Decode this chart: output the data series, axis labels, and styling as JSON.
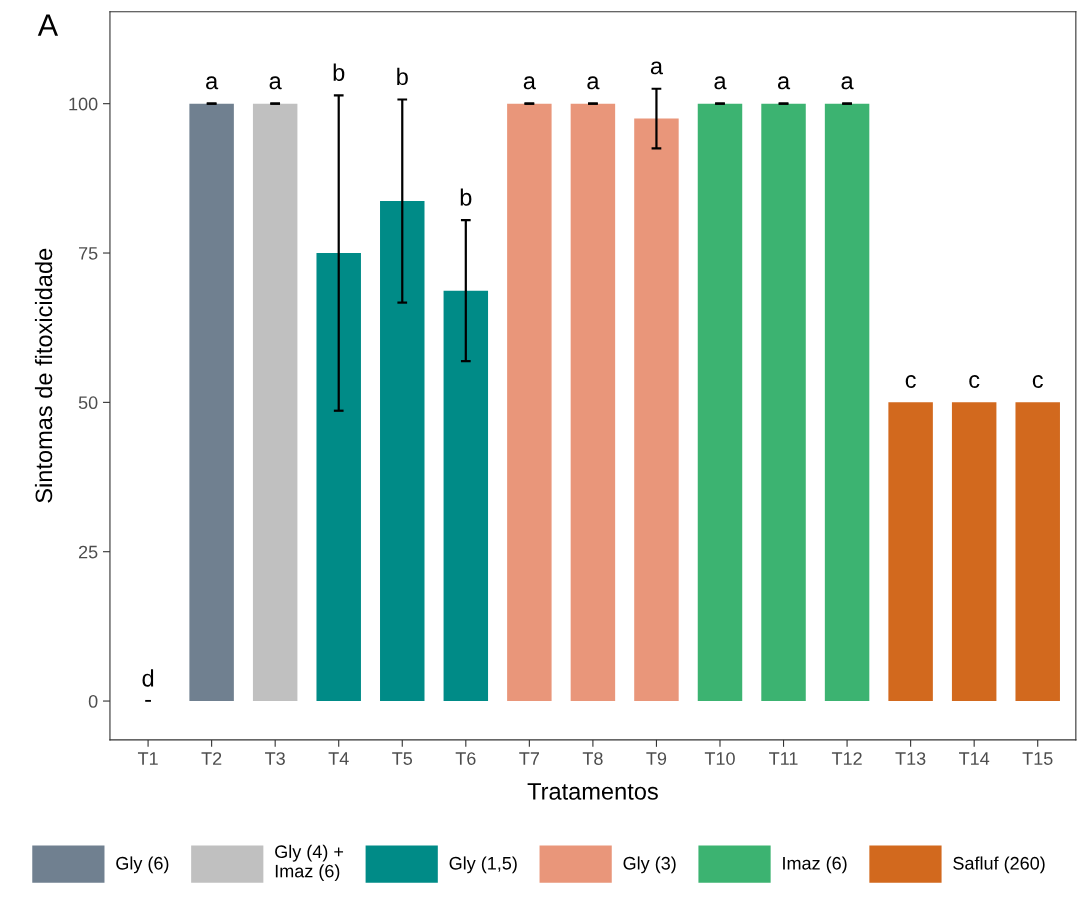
{
  "chart_data": {
    "type": "bar",
    "xlabel": "Tratamentos",
    "ylabel": "Sintomas de fitoxicidade",
    "categories": [
      "T1",
      "T2",
      "T3",
      "T4",
      "T5",
      "T6",
      "T7",
      "T8",
      "T9",
      "T10",
      "T11",
      "T12",
      "T13",
      "T14",
      "T15"
    ],
    "series": [
      {
        "color": "#ffffff",
        "values": [
          0,
          null,
          null,
          null,
          null,
          null,
          null,
          null,
          null,
          null,
          null,
          null,
          null,
          null,
          null
        ],
        "errors": [
          null,
          null,
          null,
          null,
          null,
          null,
          null,
          null,
          null,
          null,
          null,
          null,
          null,
          null,
          null
        ]
      },
      {
        "name": "Gly (6)",
        "color": "#708090",
        "values": [
          null,
          100,
          null,
          null,
          null,
          null,
          null,
          null,
          null,
          null,
          null,
          null,
          null,
          null,
          null
        ],
        "errors": [
          null,
          0,
          null,
          null,
          null,
          null,
          null,
          null,
          null,
          null,
          null,
          null,
          null,
          null,
          null
        ]
      },
      {
        "name": "Gly (4) +\nImaz (6)",
        "color": "#c0c0c0",
        "values": [
          null,
          null,
          100,
          null,
          null,
          null,
          null,
          null,
          null,
          null,
          null,
          null,
          null,
          null,
          null
        ],
        "errors": [
          null,
          null,
          0,
          null,
          null,
          null,
          null,
          null,
          null,
          null,
          null,
          null,
          null,
          null,
          null
        ]
      },
      {
        "name": "Gly (1,5)",
        "color": "#008b87",
        "values": [
          null,
          null,
          null,
          75,
          83.7,
          68.7,
          null,
          null,
          null,
          null,
          null,
          null,
          null,
          null,
          null
        ],
        "errors": [
          null,
          null,
          null,
          26.4,
          17,
          11.8,
          null,
          null,
          null,
          null,
          null,
          null,
          null,
          null,
          null
        ]
      },
      {
        "name": "Gly (3)",
        "color": "#e9967a",
        "values": [
          null,
          null,
          null,
          null,
          null,
          null,
          100,
          100,
          97.5,
          null,
          null,
          null,
          null,
          null,
          null
        ],
        "errors": [
          null,
          null,
          null,
          null,
          null,
          null,
          0,
          0,
          5,
          null,
          null,
          null,
          null,
          null,
          null
        ]
      },
      {
        "name": "Imaz (6)",
        "color": "#3cb371",
        "values": [
          null,
          null,
          null,
          null,
          null,
          null,
          null,
          null,
          null,
          100,
          100,
          100,
          null,
          null,
          null
        ],
        "errors": [
          null,
          null,
          null,
          null,
          null,
          null,
          null,
          null,
          null,
          0,
          0,
          0,
          null,
          null,
          null
        ]
      },
      {
        "name": "Safluf (260)",
        "color": "#d2691e",
        "values": [
          null,
          null,
          null,
          null,
          null,
          null,
          null,
          null,
          null,
          null,
          null,
          null,
          50,
          50,
          50
        ],
        "errors": [
          null,
          null,
          null,
          null,
          null,
          null,
          null,
          null,
          null,
          null,
          null,
          null,
          null,
          null,
          null
        ]
      }
    ],
    "ylim": [
      -6.5,
      115.4
    ],
    "yticks": [
      0,
      25,
      50,
      75,
      100
    ],
    "grid": false,
    "legend": "bottom",
    "annotations": [
      "A",
      {
        "text": "d",
        "x": "T1",
        "y": 0
      },
      {
        "text": "-",
        "x": "T1",
        "y": 0
      },
      {
        "text": "a",
        "x": "T2",
        "y": 100
      },
      {
        "text": "a",
        "x": "T3",
        "y": 100
      },
      {
        "text": "b",
        "x": "T4",
        "y": 101.4
      },
      {
        "text": "b",
        "x": "T5",
        "y": 100.7
      },
      {
        "text": "b",
        "x": "T6",
        "y": 80.5
      },
      {
        "text": "a",
        "x": "T7",
        "y": 100
      },
      {
        "text": "a",
        "x": "T8",
        "y": 100
      },
      {
        "text": "a",
        "x": "T9",
        "y": 102.5
      },
      {
        "text": "a",
        "x": "T10",
        "y": 100
      },
      {
        "text": "a",
        "x": "T11",
        "y": 100
      },
      {
        "text": "a",
        "x": "T12",
        "y": 100
      },
      {
        "text": "c",
        "x": "T13",
        "y": 50
      },
      {
        "text": "c",
        "x": "T14",
        "y": 50
      },
      {
        "text": "c",
        "x": "T15",
        "y": 50
      }
    ]
  }
}
